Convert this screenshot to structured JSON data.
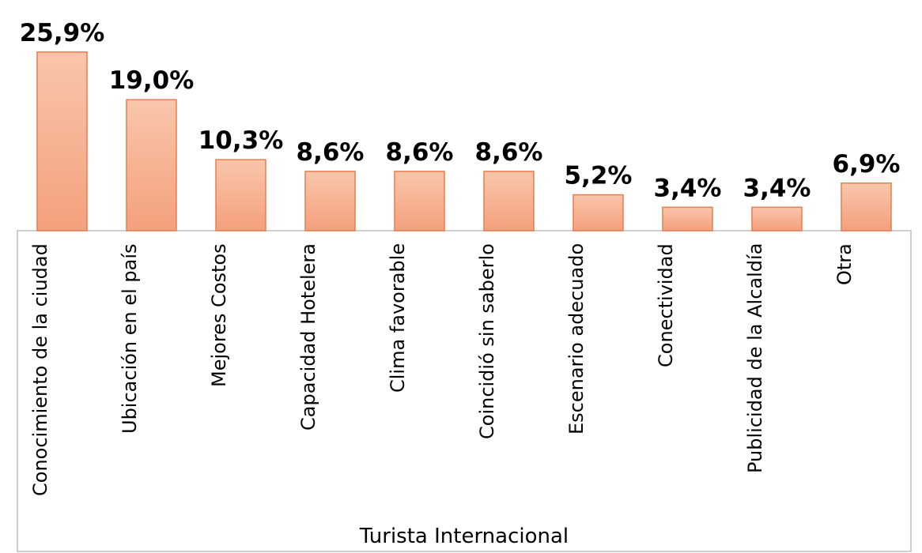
{
  "chart_data": {
    "type": "bar",
    "categories": [
      "Conocimiento de la ciudad",
      "Ubicación en el país",
      "Mejores Costos",
      "Capacidad Hotelera",
      "Clima favorable",
      "Coincidió sin saberlo",
      "Escenario adecuado",
      "Conectividad",
      "Publicidad de la Alcaldía",
      "Otra"
    ],
    "values": [
      25.9,
      19.0,
      10.3,
      8.6,
      8.6,
      8.6,
      5.2,
      3.4,
      3.4,
      6.9
    ],
    "value_labels": [
      "25,9%",
      "19,0%",
      "10,3%",
      "8,6%",
      "8,6%",
      "8,6%",
      "5,2%",
      "3,4%",
      "3,4%",
      "6,9%"
    ],
    "x_label": "Turista Internacional",
    "color": "#f6b08f"
  }
}
